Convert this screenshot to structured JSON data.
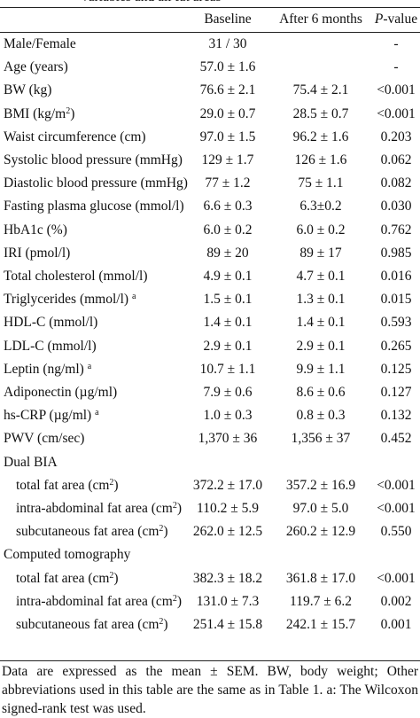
{
  "caption": "variables and all fat areas",
  "table": {
    "header": {
      "baseline": "Baseline",
      "after": "After 6 months",
      "p": {
        "italic": "P",
        "rest": "-value"
      }
    },
    "rows": [
      {
        "label": "Male/Female",
        "baseline": "31 / 30",
        "p": "-"
      },
      {
        "label": "Age (years)",
        "baseline": "57.0 ± 1.6",
        "p": "-"
      },
      {
        "label": "BW (kg)",
        "baseline": "76.6 ± 2.1",
        "after": "75.4 ± 2.1",
        "p": "<0.001"
      },
      {
        "label": "BMI (kg/m",
        "label_sup": "2",
        "label_end": ")",
        "baseline": "29.0 ± 0.7",
        "after": "28.5 ± 0.7",
        "p": "<0.001"
      },
      {
        "label": "Waist circumference (cm)",
        "baseline": "97.0 ± 1.5",
        "after": "96.2 ± 1.6",
        "p": "0.203"
      },
      {
        "label": "Systolic blood pressure (mmHg)",
        "baseline": "129 ± 1.7",
        "after": "126 ± 1.6",
        "p": "0.062"
      },
      {
        "label": "Diastolic blood pressure (mmHg)",
        "baseline": "77 ± 1.2",
        "after": "75 ± 1.1",
        "p": "0.082"
      },
      {
        "label": "Fasting plasma glucose (mmol/l)",
        "baseline": "6.6 ± 0.3",
        "after": "6.3±0.2",
        "p": "0.030"
      },
      {
        "label": "HbA1c (%)",
        "baseline": "6.0 ± 0.2",
        "after": "6.0 ± 0.2",
        "p": "0.762"
      },
      {
        "label": "IRI (pmol/l)",
        "baseline": "89 ± 20",
        "after": "89 ± 17",
        "p": "0.985"
      },
      {
        "label": "Total cholesterol (mmol/l)",
        "baseline": "4.9 ± 0.1",
        "after": "4.7 ± 0.1",
        "p": "0.016"
      },
      {
        "label": "Triglycerides (mmol/l) ",
        "label_sup": "a",
        "baseline": "1.5 ± 0.1",
        "after": "1.3 ± 0.1",
        "p": "0.015"
      },
      {
        "label": "HDL-C (mmol/l)",
        "baseline": "1.4 ± 0.1",
        "after": "1.4 ± 0.1",
        "p": "0.593"
      },
      {
        "label": "LDL-C (mmol/l)",
        "baseline": "2.9 ± 0.1",
        "after": "2.9 ± 0.1",
        "p": "0.265"
      },
      {
        "label": "Leptin (ng/ml) ",
        "label_sup": "a",
        "baseline": "10.7 ± 1.1",
        "after": "9.9 ± 1.1",
        "p": "0.125"
      },
      {
        "label": "Adiponectin (µg/ml)",
        "baseline": "7.9 ± 0.6",
        "after": "8.6 ± 0.6",
        "p": "0.127"
      },
      {
        "label": "hs-CRP (µg/ml) ",
        "label_sup": "a",
        "baseline": "1.0 ± 0.3",
        "after": "0.8 ± 0.3",
        "p": "0.132"
      },
      {
        "label": "PWV (cm/sec)",
        "baseline": "1,370 ± 36",
        "after": "1,356 ± 37",
        "p": "0.452"
      },
      {
        "label": "Dual BIA",
        "section": true
      },
      {
        "label": "total fat area (cm",
        "label_sup": "2",
        "label_end": ")",
        "indent": true,
        "baseline": "372.2 ± 17.0",
        "after": "357.2 ± 16.9",
        "p": "<0.001"
      },
      {
        "label": "intra-abdominal fat area (cm",
        "label_sup": "2",
        "label_end": ")",
        "indent": true,
        "baseline": "110.2 ± 5.9",
        "after": "97.0 ± 5.0",
        "p": "<0.001"
      },
      {
        "label": "subcutaneous fat area (cm",
        "label_sup": "2",
        "label_end": ")",
        "indent": true,
        "baseline": "262.0 ± 12.5",
        "after": "260.2 ± 12.9",
        "p": "0.550"
      },
      {
        "label": "Computed tomography",
        "section": true
      },
      {
        "label": "total fat area (cm",
        "label_sup": "2",
        "label_end": ")",
        "indent": true,
        "baseline": "382.3 ± 18.2",
        "after": "361.8 ± 17.0",
        "p": "<0.001"
      },
      {
        "label": "intra-abdominal fat area (cm",
        "label_sup": "2",
        "label_end": ")",
        "indent": true,
        "baseline": "131.0 ± 7.3",
        "after": "119.7 ± 6.2",
        "p": "0.002"
      },
      {
        "label": "subcutaneous fat area (cm",
        "label_sup": "2",
        "label_end": ")",
        "indent": true,
        "baseline": "251.4 ± 15.8",
        "after": "242.1 ± 15.7",
        "p": "0.001"
      }
    ]
  },
  "footnote": "Data are expressed as the mean ± SEM. BW, body weight; Other abbreviations used in this table are the same as in Table 1. a: The Wilcoxon signed-rank test was used."
}
